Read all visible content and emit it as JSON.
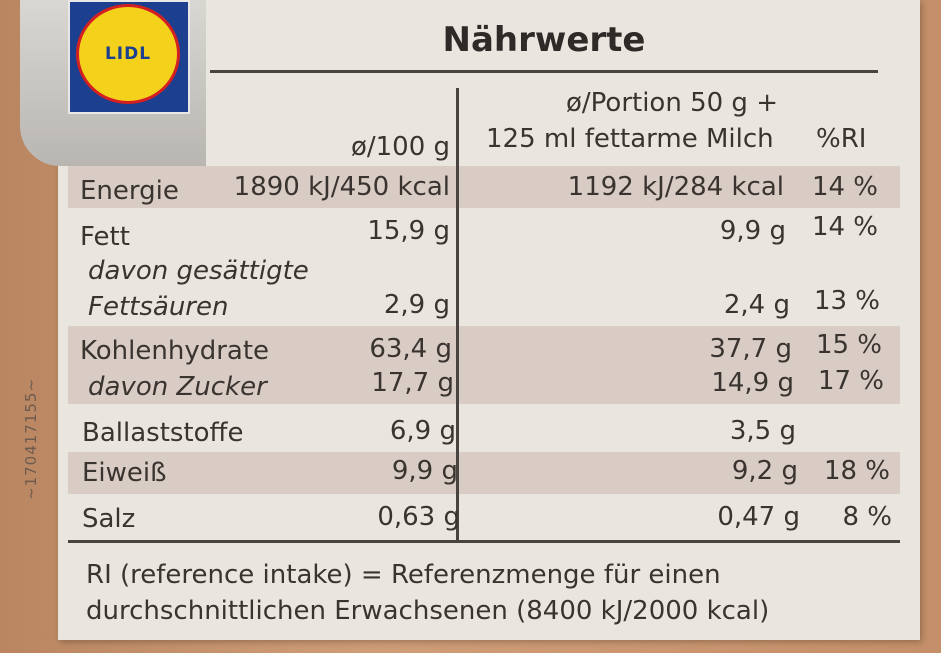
{
  "logo": {
    "text": "LIDL"
  },
  "side_code": "~170417155~",
  "title": "Nährwerte",
  "headers": {
    "per100": "ø/100 g",
    "portion_line1": "ø/Portion 50 g +",
    "portion_line2": "125 ml fettarme Milch",
    "ri": "%RI"
  },
  "rows": [
    {
      "label": "Energie",
      "per100": "1890 kJ/450 kcal",
      "portion": "1192 kJ/284 kcal",
      "ri": "14 %"
    },
    {
      "label": "Fett",
      "per100": "15,9 g",
      "portion": "9,9 g",
      "ri": "14 %"
    },
    {
      "label_line1": "davon gesättigte",
      "label_line2": "Fettsäuren",
      "per100": "2,9 g",
      "portion": "2,4 g",
      "ri": "13 %"
    },
    {
      "label": "Kohlenhydrate",
      "per100": "63,4 g",
      "portion": "37,7 g",
      "ri": "15 %"
    },
    {
      "label": "davon Zucker",
      "per100": "17,7 g",
      "portion": "14,9 g",
      "ri": "17 %"
    },
    {
      "label": "Ballaststoffe",
      "per100": "6,9 g",
      "portion": "3,5 g",
      "ri": ""
    },
    {
      "label": "Eiweiß",
      "per100": "9,9 g",
      "portion": "9,2 g",
      "ri": "18 %"
    },
    {
      "label": "Salz",
      "per100": "0,63 g",
      "portion": "0,47 g",
      "ri": "8 %"
    }
  ],
  "footnote": {
    "line1": "RI (reference intake) = Referenzmenge für einen",
    "line2": "durchschnittlichen Erwachsenen (8400 kJ/2000 kcal)"
  }
}
